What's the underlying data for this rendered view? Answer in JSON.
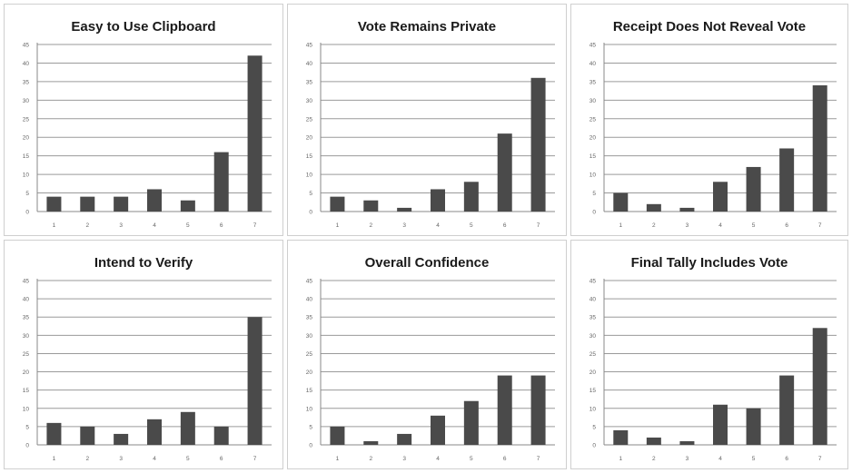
{
  "chart_data": [
    {
      "type": "bar",
      "title": "Easy to Use Clipboard",
      "categories": [
        "1",
        "2",
        "3",
        "4",
        "5",
        "6",
        "7"
      ],
      "values": [
        4,
        4,
        4,
        6,
        3,
        16,
        42
      ],
      "ylim": [
        0,
        45
      ],
      "yticks": [
        "0",
        "5",
        "10",
        "15",
        "20",
        "25",
        "30",
        "35",
        "40",
        "45"
      ],
      "grid": true,
      "bar_color": "#4a4a4a"
    },
    {
      "type": "bar",
      "title": "Vote Remains Private",
      "categories": [
        "1",
        "2",
        "3",
        "4",
        "5",
        "6",
        "7"
      ],
      "values": [
        4,
        3,
        1,
        6,
        8,
        21,
        36
      ],
      "ylim": [
        0,
        45
      ],
      "yticks": [
        "0",
        "5",
        "10",
        "15",
        "20",
        "25",
        "30",
        "35",
        "40",
        "45"
      ],
      "grid": true,
      "bar_color": "#4a4a4a"
    },
    {
      "type": "bar",
      "title": "Receipt Does Not Reveal Vote",
      "categories": [
        "1",
        "2",
        "3",
        "4",
        "5",
        "6",
        "7"
      ],
      "values": [
        5,
        2,
        1,
        8,
        12,
        17,
        34
      ],
      "ylim": [
        0,
        45
      ],
      "yticks": [
        "0",
        "5",
        "10",
        "15",
        "20",
        "25",
        "30",
        "35",
        "40",
        "45"
      ],
      "grid": true,
      "bar_color": "#4a4a4a"
    },
    {
      "type": "bar",
      "title": "Intend to Verify",
      "categories": [
        "1",
        "2",
        "3",
        "4",
        "5",
        "6",
        "7"
      ],
      "values": [
        6,
        5,
        3,
        7,
        9,
        5,
        35
      ],
      "ylim": [
        0,
        45
      ],
      "yticks": [
        "0",
        "5",
        "10",
        "15",
        "20",
        "25",
        "30",
        "35",
        "40",
        "45"
      ],
      "grid": true,
      "bar_color": "#4a4a4a"
    },
    {
      "type": "bar",
      "title": "Overall Confidence",
      "categories": [
        "1",
        "2",
        "3",
        "4",
        "5",
        "6",
        "7"
      ],
      "values": [
        5,
        1,
        3,
        8,
        12,
        19,
        19
      ],
      "ylim": [
        0,
        45
      ],
      "yticks": [
        "0",
        "5",
        "10",
        "15",
        "20",
        "25",
        "30",
        "35",
        "40",
        "45"
      ],
      "grid": true,
      "bar_color": "#4a4a4a"
    },
    {
      "type": "bar",
      "title": "Final Tally Includes Vote",
      "categories": [
        "1",
        "2",
        "3",
        "4",
        "5",
        "6",
        "7"
      ],
      "values": [
        4,
        2,
        1,
        11,
        10,
        19,
        32
      ],
      "ylim": [
        0,
        45
      ],
      "yticks": [
        "0",
        "5",
        "10",
        "15",
        "20",
        "25",
        "30",
        "35",
        "40",
        "45"
      ],
      "grid": true,
      "bar_color": "#4a4a4a"
    }
  ]
}
